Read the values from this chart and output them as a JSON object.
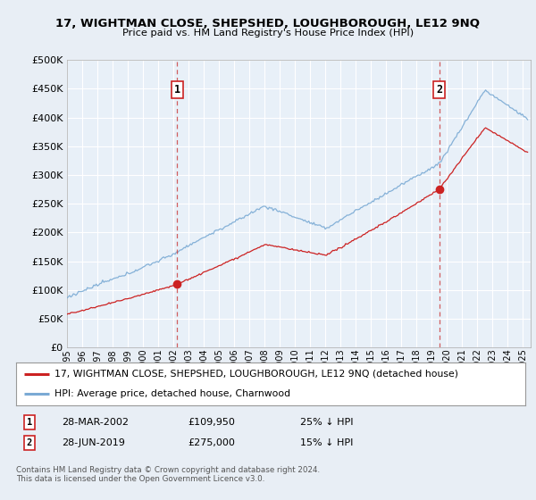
{
  "title": "17, WIGHTMAN CLOSE, SHEPSHED, LOUGHBOROUGH, LE12 9NQ",
  "subtitle": "Price paid vs. HM Land Registry's House Price Index (HPI)",
  "background_color": "#e8eef5",
  "plot_bg_color": "#e8f0f8",
  "grid_color": "#ffffff",
  "sale1_date": 2002.24,
  "sale1_price": 109950,
  "sale2_date": 2019.49,
  "sale2_price": 275000,
  "legend_line1": "17, WIGHTMAN CLOSE, SHEPSHED, LOUGHBOROUGH, LE12 9NQ (detached house)",
  "legend_line2": "HPI: Average price, detached house, Charnwood",
  "annot1_date": "28-MAR-2002",
  "annot1_price": "£109,950",
  "annot1_hpi": "25% ↓ HPI",
  "annot2_date": "28-JUN-2019",
  "annot2_price": "£275,000",
  "annot2_hpi": "15% ↓ HPI",
  "footer": "Contains HM Land Registry data © Crown copyright and database right 2024.\nThis data is licensed under the Open Government Licence v3.0.",
  "ylim": [
    0,
    500000
  ],
  "xlim_start": 1995.0,
  "xlim_end": 2025.5,
  "hpi_color": "#7aaad4",
  "price_color": "#cc2222",
  "dashed_line_color": "#cc4444"
}
